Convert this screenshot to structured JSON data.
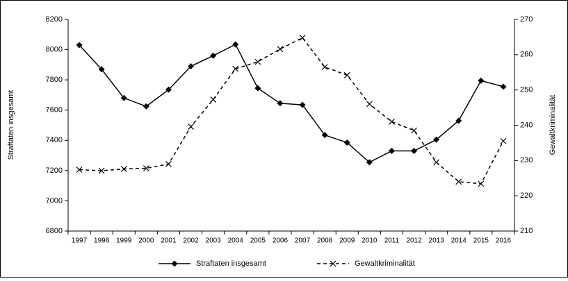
{
  "chart_data": {
    "type": "line",
    "y_label": "Straftaten insgesamt",
    "y2_label": "Gewaltkriminalität",
    "categories": [
      "1997",
      "1998",
      "1999",
      "2000",
      "2001",
      "2002",
      "2003",
      "2004",
      "2005",
      "2006",
      "2007",
      "2008",
      "2009",
      "2010",
      "2011",
      "2012",
      "2013",
      "2014",
      "2015",
      "2016"
    ],
    "series": [
      {
        "name": "Straftaten insgesamt",
        "color": "#000000",
        "marker": "diamond",
        "dash": "solid",
        "values": [
          8030,
          7870,
          7680,
          7625,
          7735,
          7890,
          7960,
          8035,
          7745,
          7645,
          7635,
          7435,
          7385,
          7255,
          7330,
          7330,
          7405,
          7530,
          7795,
          7755
        ]
      },
      {
        "name": "Gewaltkriminalität",
        "color": "#000000",
        "marker": "x",
        "dash": "dashed",
        "axis": "y2",
        "values": [
          227.4,
          227.1,
          227.6,
          227.8,
          229,
          239.6,
          247.3,
          256,
          258,
          261.6,
          264.8,
          256.5,
          254.2,
          246,
          241,
          238.5,
          229.5,
          224,
          223.4,
          235.5
        ]
      }
    ],
    "ylim": [
      6800,
      8200
    ],
    "yticks": [
      6800,
      7000,
      7200,
      7400,
      7600,
      7800,
      8000,
      8200
    ],
    "y2lim": [
      210,
      270
    ],
    "y2ticks": [
      210,
      220,
      230,
      240,
      250,
      260,
      270
    ],
    "legend": "bottom"
  }
}
